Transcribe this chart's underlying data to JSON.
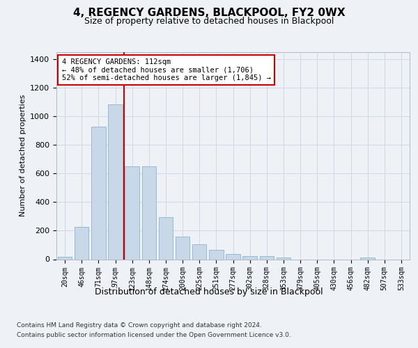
{
  "title1": "4, REGENCY GARDENS, BLACKPOOL, FY2 0WX",
  "title2": "Size of property relative to detached houses in Blackpool",
  "xlabel": "Distribution of detached houses by size in Blackpool",
  "ylabel": "Number of detached properties",
  "categories": [
    "20sqm",
    "46sqm",
    "71sqm",
    "97sqm",
    "123sqm",
    "148sqm",
    "174sqm",
    "200sqm",
    "225sqm",
    "251sqm",
    "277sqm",
    "302sqm",
    "328sqm",
    "353sqm",
    "379sqm",
    "405sqm",
    "430sqm",
    "456sqm",
    "482sqm",
    "507sqm",
    "533sqm"
  ],
  "values": [
    15,
    225,
    930,
    1085,
    650,
    650,
    295,
    160,
    105,
    65,
    35,
    20,
    20,
    10,
    0,
    0,
    0,
    0,
    10,
    0,
    0
  ],
  "bar_color": "#c8d8e8",
  "bar_edge_color": "#8ab4cc",
  "grid_color": "#d0d8e8",
  "annotation_box_text": "4 REGENCY GARDENS: 112sqm\n← 48% of detached houses are smaller (1,706)\n52% of semi-detached houses are larger (1,845) →",
  "vline_color": "#cc0000",
  "ylim": [
    0,
    1450
  ],
  "yticks": [
    0,
    200,
    400,
    600,
    800,
    1000,
    1200,
    1400
  ],
  "footer1": "Contains HM Land Registry data © Crown copyright and database right 2024.",
  "footer2": "Contains public sector information licensed under the Open Government Licence v3.0.",
  "bg_color": "#eef2f6",
  "plot_bg_color": "#eef2f6"
}
